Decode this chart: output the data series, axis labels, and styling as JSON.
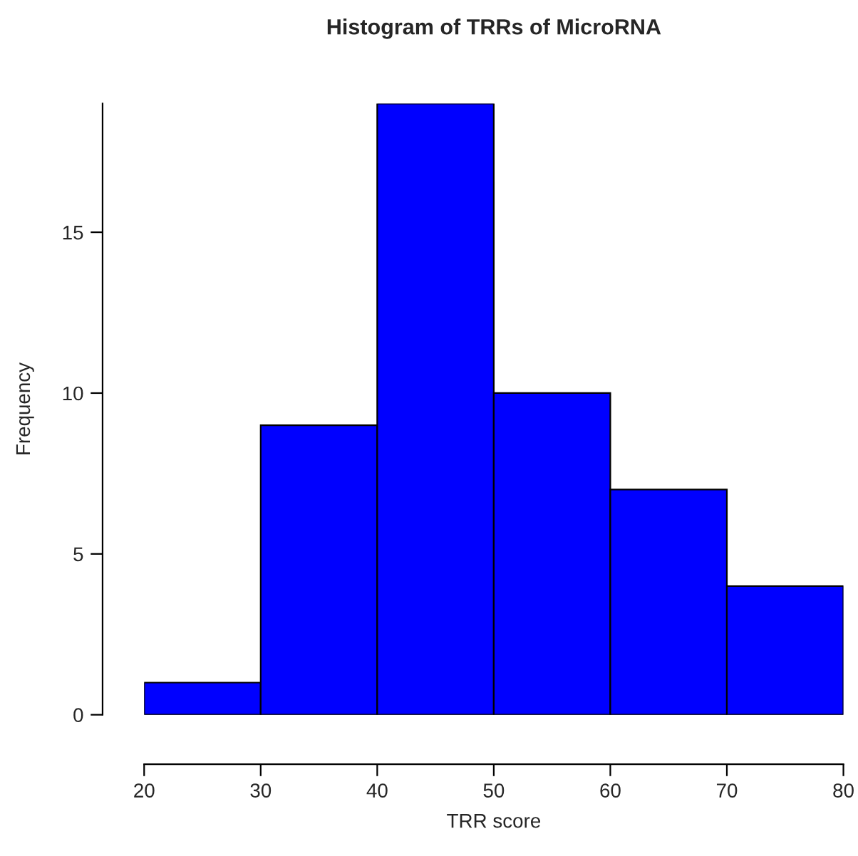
{
  "chart_data": {
    "type": "histogram",
    "title": "Histogram of TRRs of MicroRNA",
    "xlabel": "TRR score",
    "ylabel": "Frequency",
    "bins": [
      20,
      30,
      40,
      50,
      60,
      70,
      80
    ],
    "values": [
      1,
      9,
      19,
      10,
      7,
      4
    ],
    "color": "#0000ff",
    "xlim": [
      20,
      80
    ],
    "xticks": [
      20,
      30,
      40,
      50,
      60,
      70,
      80
    ],
    "ylim": [
      0,
      19
    ],
    "yticks": [
      0,
      5,
      10,
      15
    ],
    "grid": false
  }
}
